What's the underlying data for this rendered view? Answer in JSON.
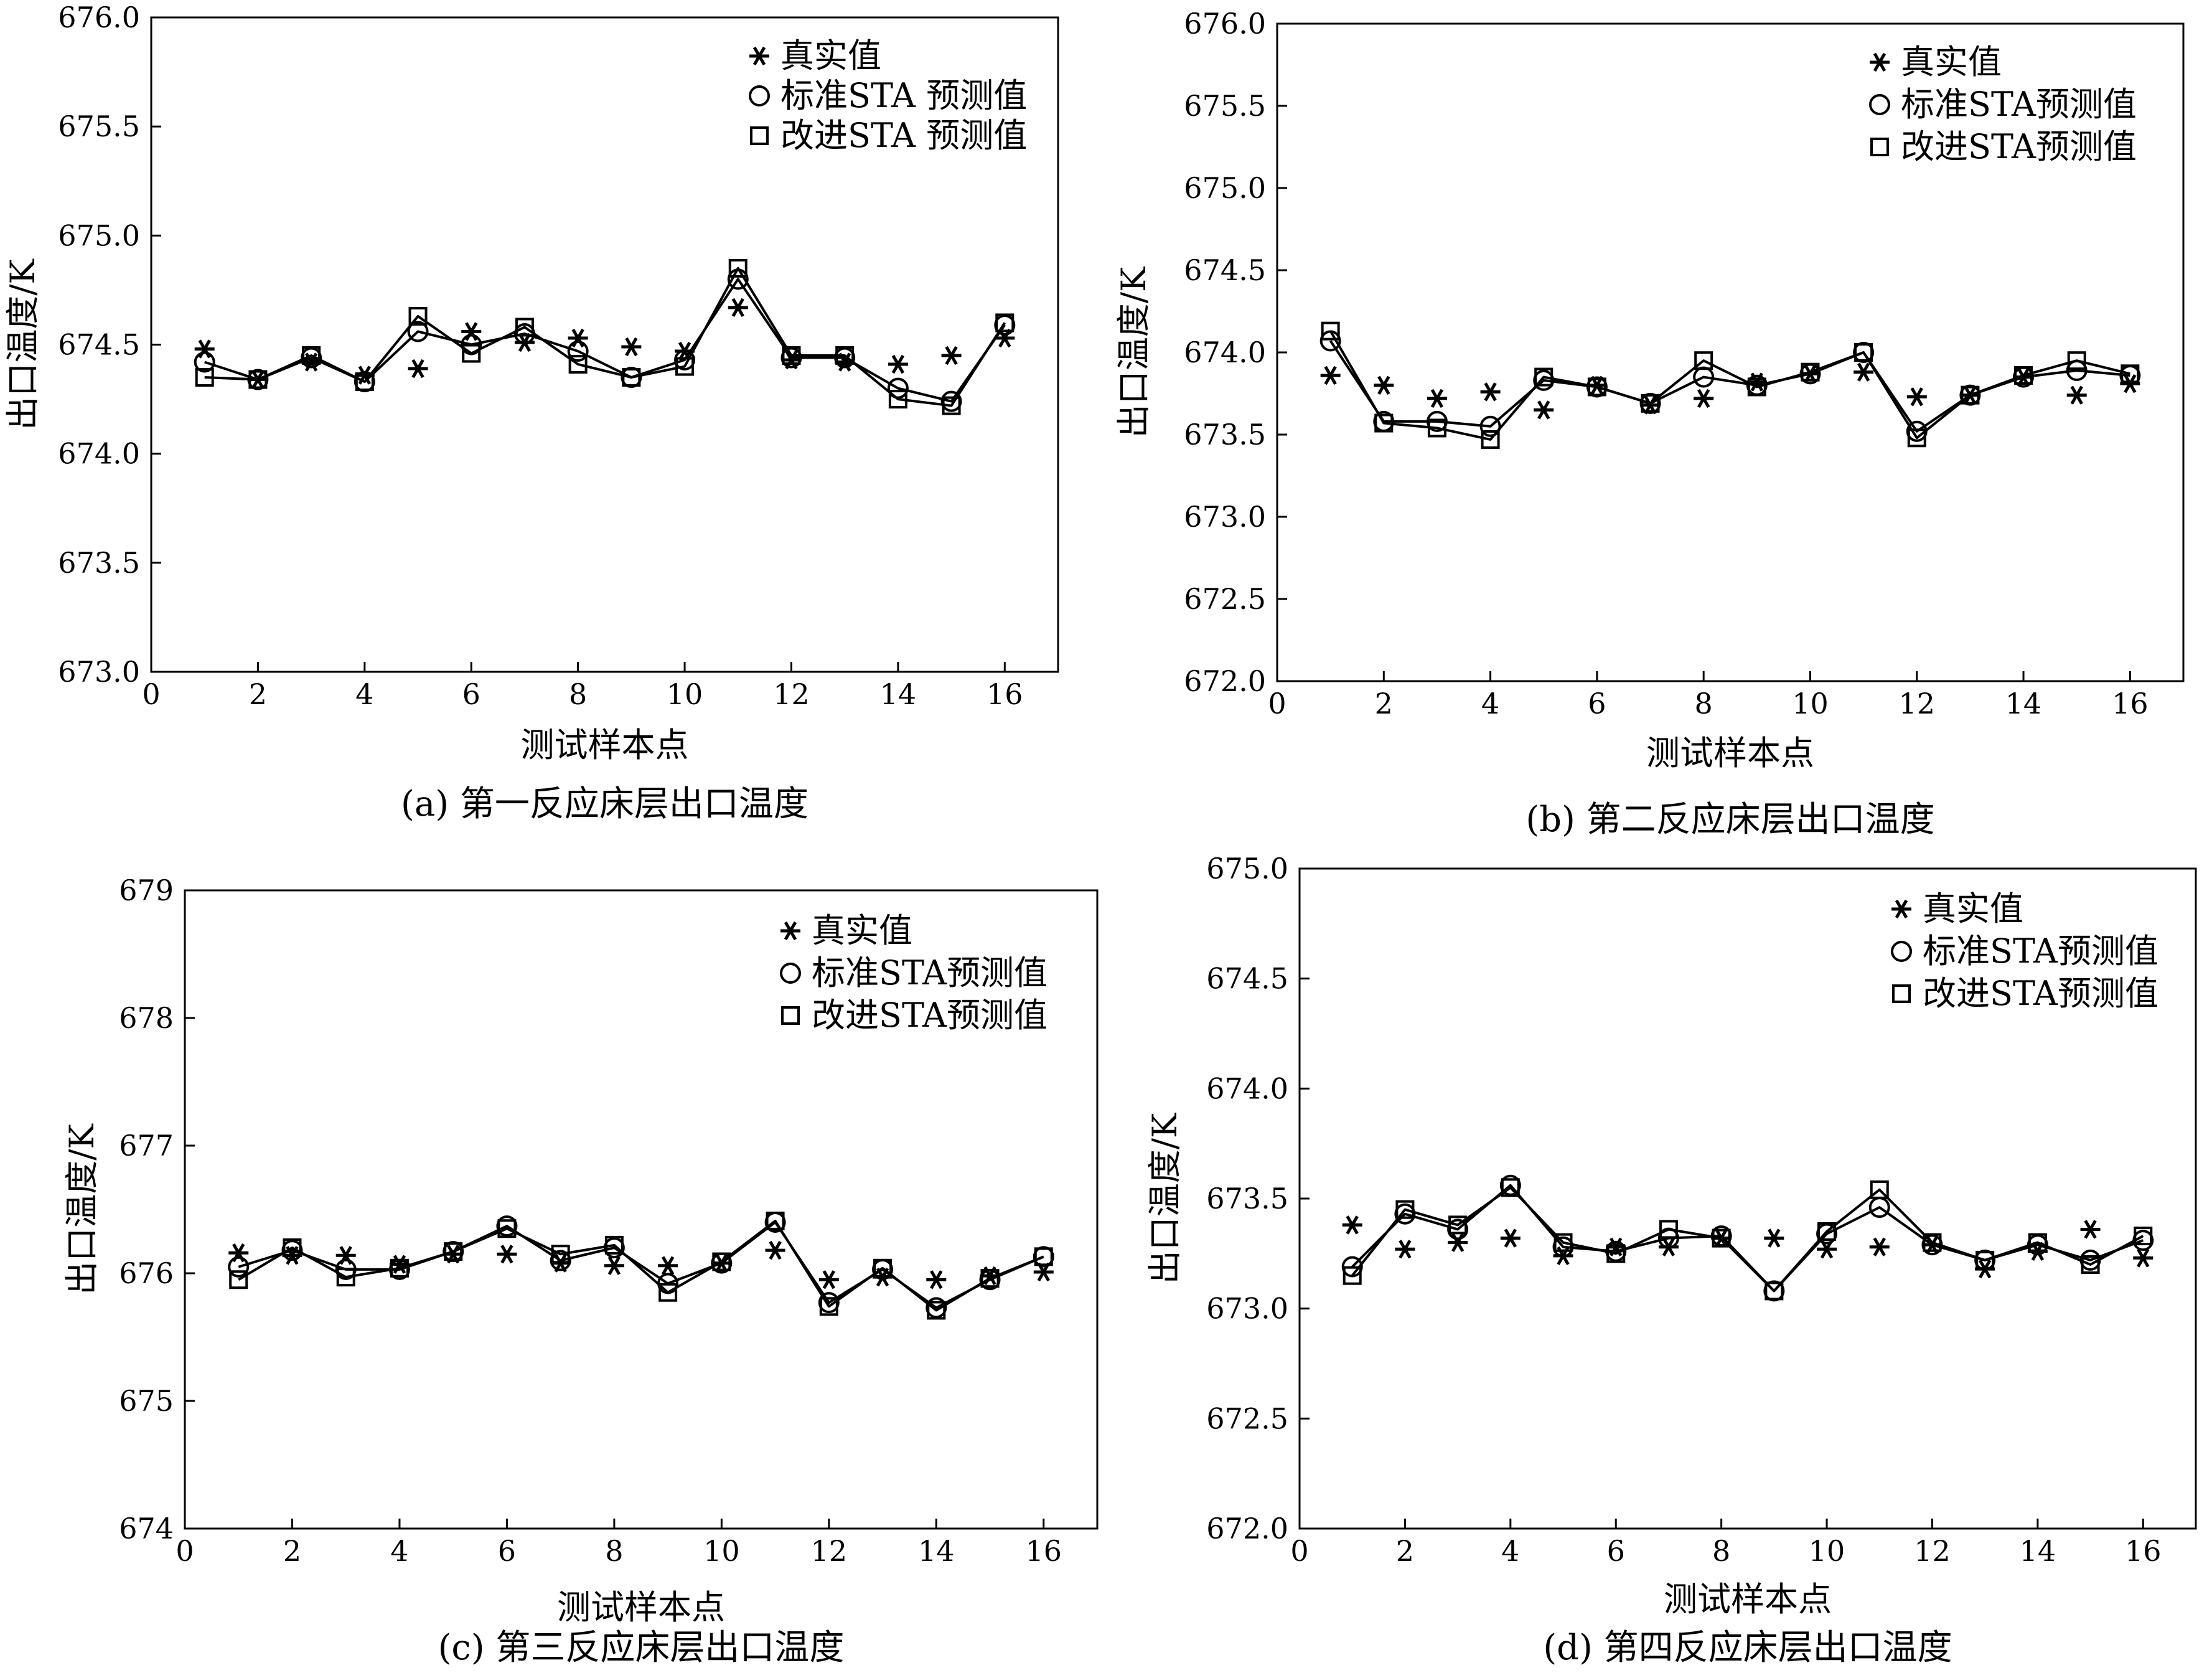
{
  "figure": {
    "colors": {
      "ink": "#000000",
      "background": "#ffffff"
    }
  },
  "chart_data": [
    {
      "id": "a",
      "type": "line",
      "caption": "(a) 第一反应床层出口温度",
      "xlabel": "测试样本点",
      "ylabel": "出口温度/K",
      "xlim": [
        0,
        17
      ],
      "ylim": [
        673.0,
        676.0
      ],
      "xticks": [
        0,
        2,
        4,
        6,
        8,
        10,
        12,
        14,
        16
      ],
      "yticks": [
        "673.0",
        "673.5",
        "674.0",
        "674.5",
        "675.0",
        "675.5",
        "676.0"
      ],
      "legend": [
        "真实值",
        "标准STA 预测值",
        "改进STA 预测值"
      ],
      "x": [
        1,
        2,
        3,
        4,
        5,
        6,
        7,
        8,
        9,
        10,
        11,
        12,
        13,
        14,
        15,
        16
      ],
      "series": [
        {
          "name": "真实值",
          "marker": "asterisk",
          "line": false,
          "values": [
            674.48,
            674.34,
            674.42,
            674.36,
            674.39,
            674.56,
            674.51,
            674.53,
            674.49,
            674.47,
            674.67,
            674.43,
            674.42,
            674.41,
            674.45,
            674.53
          ]
        },
        {
          "name": "标准STA 预测值",
          "marker": "circle",
          "line": true,
          "values": [
            674.42,
            674.34,
            674.44,
            674.33,
            674.56,
            674.5,
            674.55,
            674.47,
            674.35,
            674.43,
            674.8,
            674.44,
            674.44,
            674.3,
            674.24,
            674.59
          ]
        },
        {
          "name": "改进STA 预测值",
          "marker": "square",
          "line": true,
          "values": [
            674.35,
            674.34,
            674.45,
            674.33,
            674.63,
            674.46,
            674.58,
            674.41,
            674.35,
            674.4,
            674.85,
            674.45,
            674.45,
            674.25,
            674.22,
            674.6
          ]
        }
      ]
    },
    {
      "id": "b",
      "type": "line",
      "caption": "(b) 第二反应床层出口温度",
      "xlabel": "测试样本点",
      "ylabel": "出口温度/K",
      "xlim": [
        0,
        17
      ],
      "ylim": [
        672.0,
        676.0
      ],
      "xticks": [
        0,
        2,
        4,
        6,
        8,
        10,
        12,
        14,
        16
      ],
      "yticks": [
        "672.0",
        "672.5",
        "673.0",
        "673.5",
        "674.0",
        "674.5",
        "675.0",
        "675.5",
        "676.0"
      ],
      "legend": [
        "真实值",
        "标准STA预测值",
        "改进STA预测值"
      ],
      "x": [
        1,
        2,
        3,
        4,
        5,
        6,
        7,
        8,
        9,
        10,
        11,
        12,
        13,
        14,
        15,
        16
      ],
      "series": [
        {
          "name": "真实值",
          "marker": "asterisk",
          "line": false,
          "values": [
            673.86,
            673.8,
            673.72,
            673.76,
            673.65,
            673.8,
            673.68,
            673.72,
            673.82,
            673.87,
            673.88,
            673.73,
            673.74,
            673.85,
            673.74,
            673.81
          ]
        },
        {
          "name": "标准STA预测值",
          "marker": "circle",
          "line": true,
          "values": [
            674.07,
            673.58,
            673.58,
            673.55,
            673.83,
            673.79,
            673.69,
            673.85,
            673.8,
            673.87,
            674.0,
            673.52,
            673.74,
            673.85,
            673.89,
            673.86
          ]
        },
        {
          "name": "改进STA预测值",
          "marker": "square",
          "line": true,
          "values": [
            674.13,
            673.57,
            673.54,
            673.47,
            673.85,
            673.79,
            673.69,
            673.95,
            673.79,
            673.88,
            674.0,
            673.48,
            673.74,
            673.86,
            673.95,
            673.87
          ]
        }
      ]
    },
    {
      "id": "c",
      "type": "line",
      "caption": "(c) 第三反应床层出口温度",
      "xlabel": "测试样本点",
      "ylabel": "出口温度/K",
      "xlim": [
        0,
        17
      ],
      "ylim": [
        674,
        679
      ],
      "xticks": [
        0,
        2,
        4,
        6,
        8,
        10,
        12,
        14,
        16
      ],
      "yticks": [
        "674",
        "675",
        "676",
        "677",
        "678",
        "679"
      ],
      "legend": [
        "真实值",
        "标准STA预测值",
        "改进STA预测值"
      ],
      "x": [
        1,
        2,
        3,
        4,
        5,
        6,
        7,
        8,
        9,
        10,
        11,
        12,
        13,
        14,
        15,
        16
      ],
      "series": [
        {
          "name": "真实值",
          "marker": "asterisk",
          "line": false,
          "values": [
            676.16,
            676.14,
            676.14,
            676.07,
            676.15,
            676.15,
            676.08,
            676.06,
            676.06,
            676.08,
            676.18,
            675.95,
            675.97,
            675.95,
            675.98,
            676.01
          ]
        },
        {
          "name": "标准STA预测值",
          "marker": "circle",
          "line": true,
          "values": [
            676.05,
            676.18,
            676.03,
            676.03,
            676.17,
            676.37,
            676.1,
            676.2,
            675.92,
            676.08,
            676.4,
            675.77,
            676.03,
            675.73,
            675.95,
            676.13
          ]
        },
        {
          "name": "改进STA预测值",
          "marker": "square",
          "line": true,
          "values": [
            675.95,
            676.2,
            675.97,
            676.04,
            676.17,
            676.35,
            676.15,
            676.22,
            675.85,
            676.09,
            676.41,
            675.74,
            676.04,
            675.71,
            675.96,
            676.13
          ]
        }
      ]
    },
    {
      "id": "d",
      "type": "line",
      "caption": "(d) 第四反应床层出口温度",
      "xlabel": "测试样本点",
      "ylabel": "出口温度/K",
      "xlim": [
        0,
        17
      ],
      "ylim": [
        672.0,
        675.0
      ],
      "xticks": [
        0,
        2,
        4,
        6,
        8,
        10,
        12,
        14,
        16
      ],
      "yticks": [
        "672.0",
        "672.5",
        "673.0",
        "673.5",
        "674.0",
        "674.5",
        "675.0"
      ],
      "legend": [
        "真实值",
        "标准STA预测值",
        "改进STA预测值"
      ],
      "x": [
        1,
        2,
        3,
        4,
        5,
        6,
        7,
        8,
        9,
        10,
        11,
        12,
        13,
        14,
        15,
        16
      ],
      "series": [
        {
          "name": "真实值",
          "marker": "asterisk",
          "line": false,
          "values": [
            673.38,
            673.27,
            673.3,
            673.32,
            673.24,
            673.28,
            673.28,
            673.32,
            673.32,
            673.27,
            673.28,
            673.29,
            673.18,
            673.26,
            673.36,
            673.23
          ]
        },
        {
          "name": "标准STA预测值",
          "marker": "circle",
          "line": true,
          "values": [
            673.19,
            673.43,
            673.36,
            673.56,
            673.28,
            673.26,
            673.32,
            673.33,
            673.08,
            673.34,
            673.46,
            673.29,
            673.22,
            673.29,
            673.22,
            673.31
          ]
        },
        {
          "name": "改进STA预测值",
          "marker": "square",
          "line": true,
          "values": [
            673.15,
            673.45,
            673.38,
            673.55,
            673.3,
            673.25,
            673.36,
            673.32,
            673.08,
            673.35,
            673.54,
            673.3,
            673.22,
            673.3,
            673.2,
            673.33
          ]
        }
      ]
    }
  ]
}
